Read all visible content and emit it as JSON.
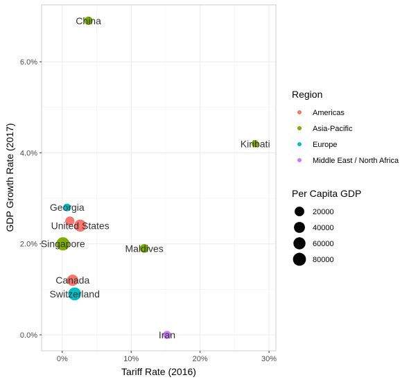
{
  "chart_data": {
    "type": "scatter",
    "title": "",
    "xlabel": "Tariff Rate (2016)",
    "ylabel": "GDP Growth Rate (2017)",
    "xlim": [
      -3,
      31
    ],
    "ylim": [
      -0.35,
      7.25
    ],
    "x_ticks": [
      0,
      10,
      20,
      30
    ],
    "x_tick_labels": [
      "0%",
      "10%",
      "20%",
      "30%"
    ],
    "y_ticks": [
      0,
      2,
      4,
      6
    ],
    "y_tick_labels": [
      "0.0%",
      "2.0%",
      "4.0%",
      "6.0%"
    ],
    "grid": true,
    "legend_placement": "right",
    "colors": {
      "Americas": "#F8766D",
      "Asia-Pacific": "#7CAE00",
      "Europe": "#00BFC4",
      "Middle East / North Africa": "#C77CFF"
    },
    "color_legend": {
      "title": "Region",
      "entries": [
        "Americas",
        "Asia-Pacific",
        "Europe",
        "Middle East / North Africa"
      ]
    },
    "size_legend": {
      "title": "Per Capita GDP",
      "entries": [
        20000,
        40000,
        60000,
        80000
      ],
      "entry_labels": [
        "20000",
        "40000",
        "60000",
        "80000"
      ]
    },
    "points": [
      {
        "label": "China",
        "x": 3.8,
        "y": 6.9,
        "region": "Asia-Pacific",
        "gdp_per_capita": 8800
      },
      {
        "label": "Kiribati",
        "x": 28.0,
        "y": 4.2,
        "region": "Asia-Pacific",
        "gdp_per_capita": 1700
      },
      {
        "label": "Georgia",
        "x": 0.7,
        "y": 2.8,
        "region": "Europe",
        "gdp_per_capita": 4100
      },
      {
        "label": "",
        "x": 1.1,
        "y": 2.5,
        "region": "Americas",
        "gdp_per_capita": 15000
      },
      {
        "label": "United States",
        "x": 2.6,
        "y": 2.4,
        "region": "Americas",
        "gdp_per_capita": 59500
      },
      {
        "label": "Singapore",
        "x": 0.1,
        "y": 2.0,
        "region": "Asia-Pacific",
        "gdp_per_capita": 85000
      },
      {
        "label": "Maldives",
        "x": 11.9,
        "y": 1.9,
        "region": "Asia-Pacific",
        "gdp_per_capita": 11000
      },
      {
        "label": "Canada",
        "x": 1.5,
        "y": 1.2,
        "region": "Americas",
        "gdp_per_capita": 45000
      },
      {
        "label": "Switzerland",
        "x": 1.8,
        "y": 0.9,
        "region": "Europe",
        "gdp_per_capita": 80000
      },
      {
        "label": "Iran",
        "x": 15.2,
        "y": 0.0,
        "region": "Middle East / North Africa",
        "gdp_per_capita": 5400
      }
    ]
  }
}
